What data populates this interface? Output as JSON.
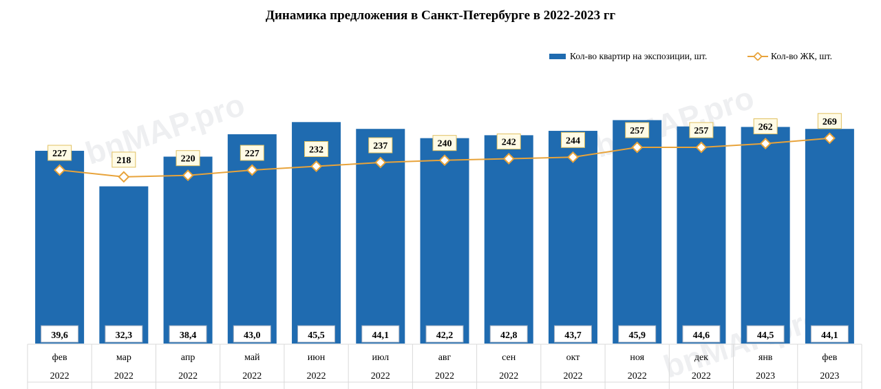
{
  "chart_data": {
    "type": "bar",
    "title": "Динамика предложения в Санкт-Петербурге в 2022-2023 гг",
    "categories": [
      {
        "month": "фев",
        "year": "2022"
      },
      {
        "month": "мар",
        "year": "2022"
      },
      {
        "month": "апр",
        "year": "2022"
      },
      {
        "month": "май",
        "year": "2022"
      },
      {
        "month": "июн",
        "year": "2022"
      },
      {
        "month": "июл",
        "year": "2022"
      },
      {
        "month": "авг",
        "year": "2022"
      },
      {
        "month": "сен",
        "year": "2022"
      },
      {
        "month": "окт",
        "year": "2022"
      },
      {
        "month": "ноя",
        "year": "2022"
      },
      {
        "month": "дек",
        "year": "2022"
      },
      {
        "month": "янв",
        "year": "2023"
      },
      {
        "month": "фев",
        "year": "2023"
      }
    ],
    "series": [
      {
        "name": "Кол-во квартир на экспозиции, шт.",
        "type": "bar",
        "color": "#1f6bb0",
        "values": [
          39.6,
          32.3,
          38.4,
          43.0,
          45.5,
          44.1,
          42.2,
          42.8,
          43.7,
          45.9,
          44.6,
          44.5,
          44.1
        ],
        "labels": [
          "39,6",
          "32,3",
          "38,4",
          "43,0",
          "45,5",
          "44,1",
          "42,2",
          "42,8",
          "43,7",
          "45,9",
          "44,6",
          "44,5",
          "44,1"
        ]
      },
      {
        "name": "Кол-во ЖК, шт.",
        "type": "line",
        "color": "#e8a33a",
        "values": [
          227,
          218,
          220,
          227,
          232,
          237,
          240,
          242,
          244,
          257,
          257,
          262,
          269
        ],
        "labels": [
          "227",
          "218",
          "220",
          "227",
          "232",
          "237",
          "240",
          "242",
          "244",
          "257",
          "257",
          "262",
          "269"
        ]
      }
    ],
    "legend_position": "top-right",
    "grid": false,
    "watermark": "bnMAP.pro"
  }
}
